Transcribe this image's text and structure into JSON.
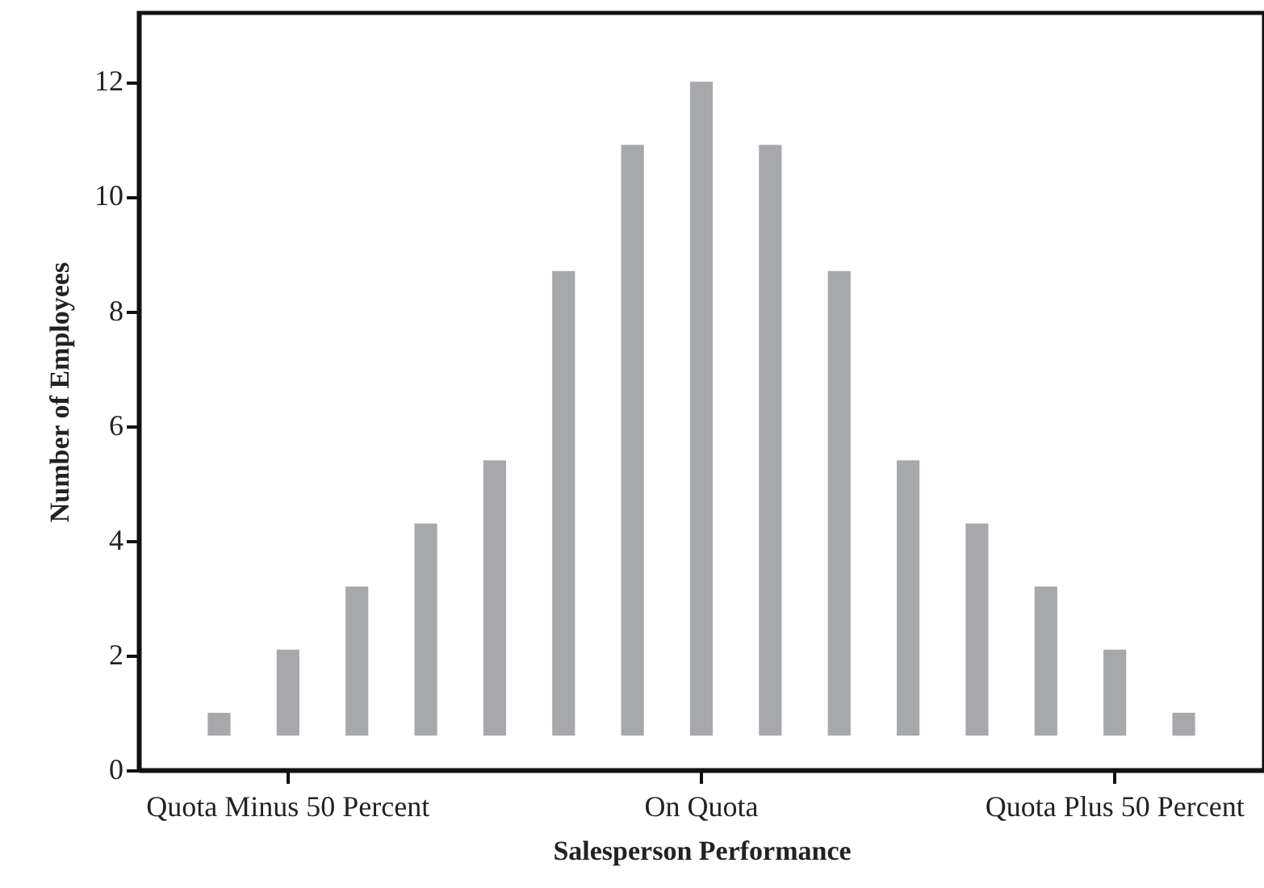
{
  "chart_data": {
    "type": "bar",
    "xlabel": "Salesperson Performance",
    "ylabel": "Number of Employees",
    "categories": [
      null,
      "Quota Minus 50 Percent",
      null,
      null,
      null,
      null,
      null,
      "On Quota",
      null,
      null,
      null,
      null,
      null,
      "Quota Plus 50 Percent",
      null
    ],
    "values": [
      0.4,
      1.5,
      2.6,
      3.7,
      4.8,
      8.1,
      10.3,
      11.4,
      10.3,
      8.1,
      4.8,
      3.7,
      2.6,
      1.5,
      0.4
    ],
    "base": [
      0.6,
      0.6,
      0.6,
      0.6,
      0.6,
      0.6,
      0.6,
      0.6,
      0.6,
      0.6,
      0.6,
      0.6,
      0.6,
      0.6,
      0.6
    ],
    "color": "#a7a8ab",
    "ylim": [
      0,
      13.2
    ],
    "yticks": [
      0,
      2,
      4,
      6,
      8,
      10,
      12
    ]
  }
}
